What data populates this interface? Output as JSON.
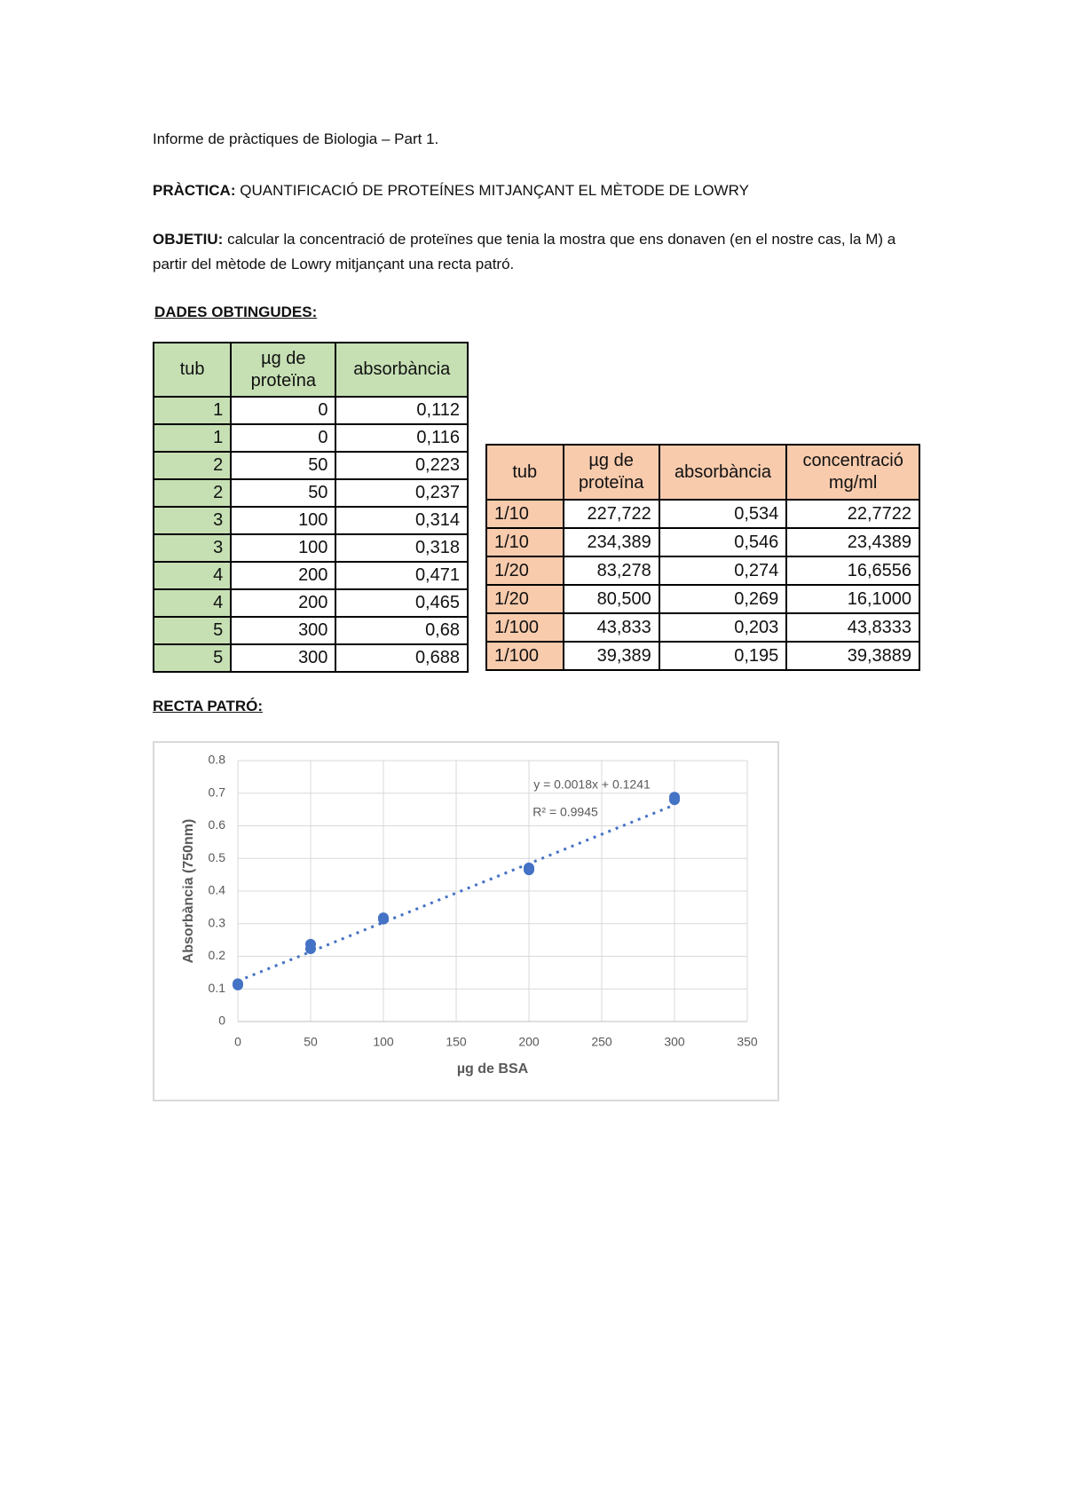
{
  "header": {
    "title": "Informe de pràctiques de Biologia – Part 1."
  },
  "practica": {
    "label": "PRÀCTICA:",
    "text": "QUANTIFICACIÓ DE PROTEÍNES MITJANÇANT EL MÈTODE DE LOWRY"
  },
  "objetiu": {
    "label": "OBJETIU:",
    "text": "calcular la concentració de proteïnes que tenia la mostra que ens donaven (en el nostre cas, la M) a partir del mètode de Lowry mitjançant una recta patró."
  },
  "dades_heading": "DADES OBTINGUDES:",
  "table1": {
    "columns": [
      "tub",
      "µg de proteïna",
      "absorbància"
    ],
    "rows": [
      [
        "1",
        "0",
        "0,112"
      ],
      [
        "1",
        "0",
        "0,116"
      ],
      [
        "2",
        "50",
        "0,223"
      ],
      [
        "2",
        "50",
        "0,237"
      ],
      [
        "3",
        "100",
        "0,314"
      ],
      [
        "3",
        "100",
        "0,318"
      ],
      [
        "4",
        "200",
        "0,471"
      ],
      [
        "4",
        "200",
        "0,465"
      ],
      [
        "5",
        "300",
        "0,68"
      ],
      [
        "5",
        "300",
        "0,688"
      ]
    ]
  },
  "table2": {
    "columns": [
      "tub",
      "µg de proteïna",
      "absorbància",
      "concentració mg/ml"
    ],
    "rows": [
      [
        "1/10",
        "227,722",
        "0,534",
        "22,7722"
      ],
      [
        "1/10",
        "234,389",
        "0,546",
        "23,4389"
      ],
      [
        "1/20",
        "83,278",
        "0,274",
        "16,6556"
      ],
      [
        "1/20",
        "80,500",
        "0,269",
        "16,1000"
      ],
      [
        "1/100",
        "43,833",
        "0,203",
        "43,8333"
      ],
      [
        "1/100",
        "39,389",
        "0,195",
        "39,3889"
      ]
    ]
  },
  "recta_heading": "RECTA PATRÓ:",
  "chart_data": {
    "type": "scatter",
    "x": [
      0,
      0,
      50,
      50,
      100,
      100,
      200,
      200,
      300,
      300
    ],
    "values": [
      0.112,
      0.116,
      0.223,
      0.237,
      0.314,
      0.318,
      0.471,
      0.465,
      0.68,
      0.688
    ],
    "color": "#4472c4",
    "xlim": [
      0,
      350
    ],
    "ylim": [
      0,
      0.8
    ],
    "xticks": [
      0,
      50,
      100,
      150,
      200,
      250,
      300,
      350
    ],
    "yticks": [
      0,
      0.1,
      0.2,
      0.3,
      0.4,
      0.5,
      0.6,
      0.7,
      0.8
    ],
    "x_label": "µg de BSA",
    "y_label": "Absorbància (750nm)",
    "grid": true,
    "trendline": {
      "equation": "y = 0.0018x + 0.1241",
      "r2": "R² = 0.9945",
      "slope": 0.0018,
      "intercept": 0.1241
    }
  }
}
